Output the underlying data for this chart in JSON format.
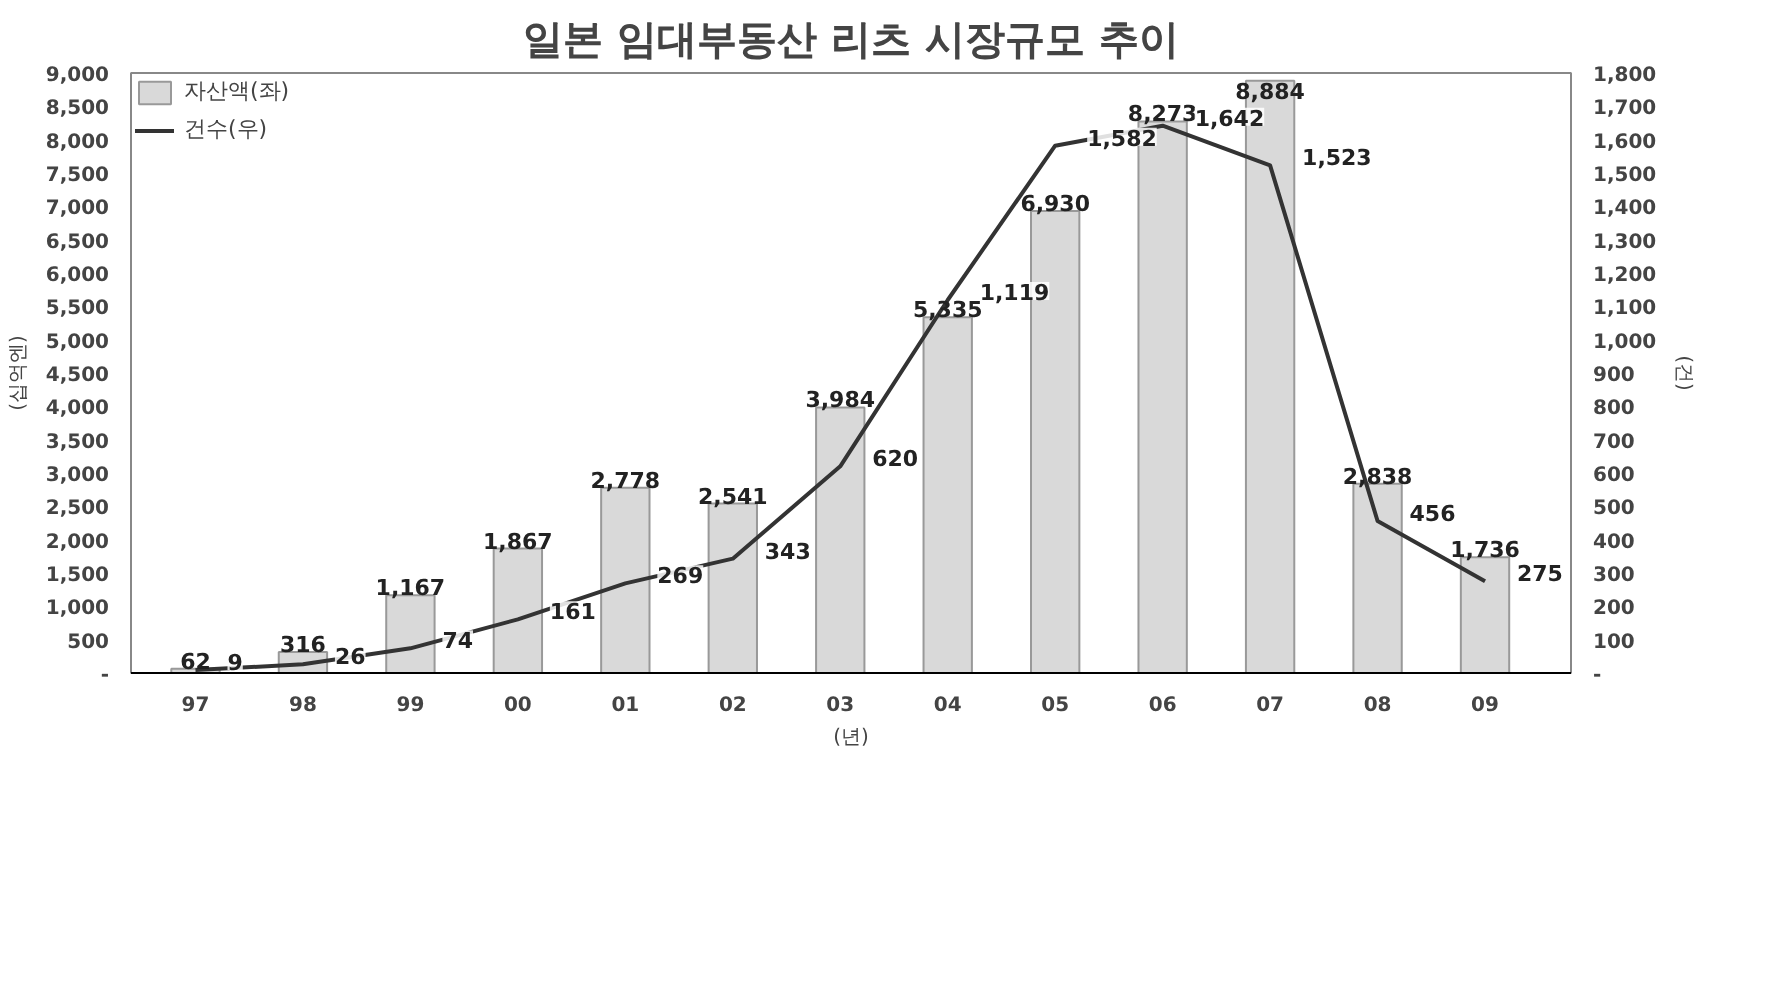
{
  "chart_data": {
    "type": "bar",
    "title": "일본 임대부동산 리츠 시장규모 추이",
    "ylabel": "(십억엔)",
    "y2label": "(건)",
    "xlabel": "(년)",
    "categories": [
      "97",
      "98",
      "99",
      "00",
      "01",
      "02",
      "03",
      "04",
      "05",
      "06",
      "07",
      "08",
      "09"
    ],
    "series": [
      {
        "name": "자산액(좌)",
        "color": "#d9d9d9",
        "values": [
          62,
          316,
          1167,
          1867,
          2778,
          2541,
          3984,
          5335,
          6930,
          8273,
          8884,
          2838,
          1736
        ],
        "value_labels": [
          "62",
          "316",
          "1,167",
          "1,867",
          "2,778",
          "2,541",
          "3,984",
          "5,335",
          "6,930",
          "8,273",
          "8,884",
          "2,838",
          "1,736"
        ]
      },
      {
        "name": "건수(우)",
        "type": "line",
        "axis": "y2",
        "color": "#333333",
        "values": [
          9,
          26,
          74,
          161,
          269,
          343,
          620,
          1119,
          1582,
          1642,
          1523,
          456,
          275
        ],
        "value_labels": [
          "9",
          "26",
          "74",
          "161",
          "269",
          "343",
          "620",
          "1,119",
          "1,582",
          "1,642",
          "1,523",
          "456",
          "275"
        ]
      }
    ],
    "ylim": [
      0,
      9000
    ],
    "yticks": [
      {
        "value": 0,
        "label": "-"
      },
      500,
      {
        "value": 1000,
        "label": "1,000"
      },
      {
        "value": 1500,
        "label": "1,500"
      },
      {
        "value": 2000,
        "label": "2,000"
      },
      {
        "value": 2500,
        "label": "2,500"
      },
      {
        "value": 3000,
        "label": "3,000"
      },
      {
        "value": 3500,
        "label": "3,500"
      },
      {
        "value": 4000,
        "label": "4,000"
      },
      {
        "value": 4500,
        "label": "4,500"
      },
      {
        "value": 5000,
        "label": "5,000"
      },
      {
        "value": 5500,
        "label": "5,500"
      },
      {
        "value": 6000,
        "label": "6,000"
      },
      {
        "value": 6500,
        "label": "6,500"
      },
      {
        "value": 7000,
        "label": "7,000"
      },
      {
        "value": 7500,
        "label": "7,500"
      },
      {
        "value": 8000,
        "label": "8,000"
      },
      {
        "value": 8500,
        "label": "8,500"
      },
      {
        "value": 9000,
        "label": "9,000"
      }
    ],
    "y2lim": [
      0,
      1800
    ],
    "y2ticks": [
      {
        "value": 0,
        "label": "-"
      },
      100,
      200,
      300,
      400,
      500,
      600,
      700,
      800,
      900,
      {
        "value": 1000,
        "label": "1,000"
      },
      {
        "value": 1100,
        "label": "1,100"
      },
      {
        "value": 1200,
        "label": "1,200"
      },
      {
        "value": 1300,
        "label": "1,300"
      },
      {
        "value": 1400,
        "label": "1,400"
      },
      {
        "value": 1500,
        "label": "1,500"
      },
      {
        "value": 1600,
        "label": "1,600"
      },
      {
        "value": 1700,
        "label": "1,700"
      },
      {
        "value": 1800,
        "label": "1,800"
      }
    ],
    "legend": "top left",
    "grid": false,
    "marker": "none",
    "line_style": "solid"
  }
}
